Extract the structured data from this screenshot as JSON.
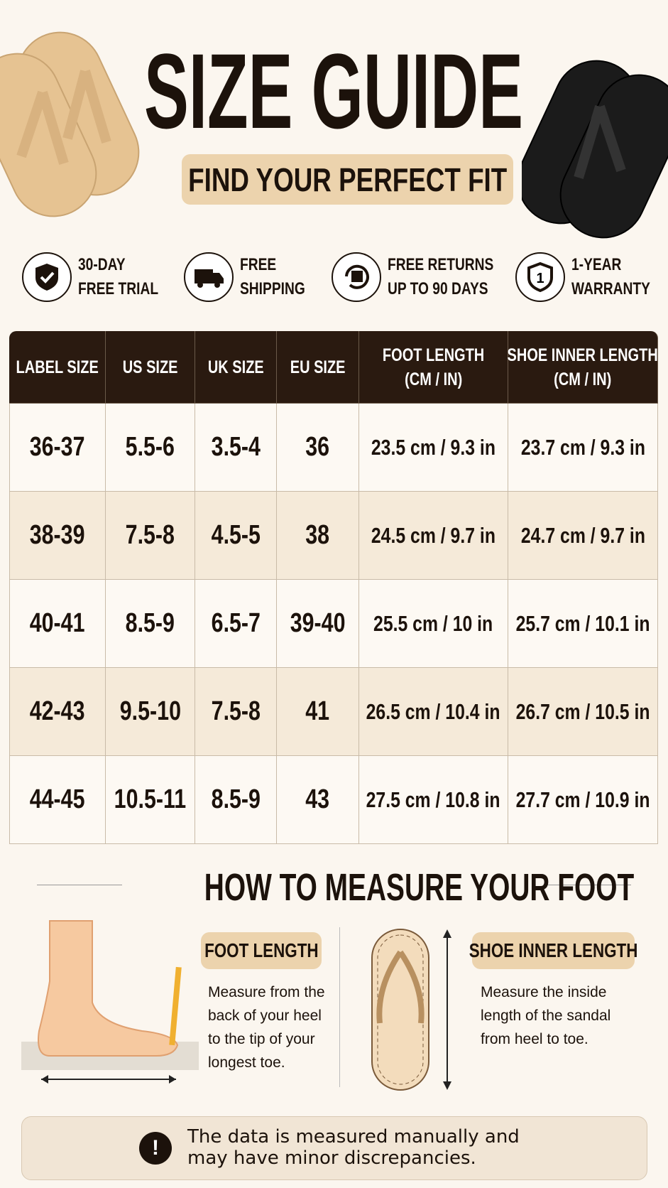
{
  "header": {
    "title": "SIZE GUIDE",
    "subtitle": "FIND YOUR PERFECT FIT"
  },
  "features": [
    {
      "lines": [
        "30-DAY",
        "FREE TRIAL"
      ]
    },
    {
      "lines": [
        "FREE",
        "SHIPPING"
      ]
    },
    {
      "lines": [
        "FREE RETURNS",
        "UP TO 90 DAYS"
      ]
    },
    {
      "lines": [
        "1-YEAR",
        "WARRANTY"
      ]
    }
  ],
  "table": {
    "headers": [
      [
        "LABEL SIZE"
      ],
      [
        "US SIZE"
      ],
      [
        "UK SIZE"
      ],
      [
        "EU SIZE"
      ],
      [
        "FOOT LENGTH",
        "(CM / IN)"
      ],
      [
        "SHOE INNER LENGTH",
        "(CM / IN)"
      ]
    ],
    "rows": [
      [
        "36-37",
        "5.5-6",
        "3.5-4",
        "36",
        "23.5 cm / 9.3 in",
        "23.7 cm / 9.3 in"
      ],
      [
        "38-39",
        "7.5-8",
        "4.5-5",
        "38",
        "24.5 cm / 9.7 in",
        "24.7 cm / 9.7 in"
      ],
      [
        "40-41",
        "8.5-9",
        "6.5-7",
        "39-40",
        "25.5 cm / 10 in",
        "25.7 cm / 10.1 in"
      ],
      [
        "42-43",
        "9.5-10",
        "7.5-8",
        "41",
        "26.5 cm / 10.4 in",
        "26.7 cm / 10.5 in"
      ],
      [
        "44-45",
        "10.5-11",
        "8.5-9",
        "43",
        "27.5 cm / 10.8 in",
        "27.7 cm / 10.9 in"
      ]
    ]
  },
  "measure": {
    "title": "HOW TO MEASURE YOUR FOOT",
    "cards": [
      {
        "label": "FOOT LENGTH",
        "text": "Measure from the back of your heel to the tip of your longest toe."
      },
      {
        "label": "SHOE INNER LENGTH",
        "text": "Measure the inside length of the sandal from heel to toe."
      }
    ]
  },
  "note": {
    "icon": "!",
    "text": "The data is measured manually and may have minor discrepancies."
  }
}
